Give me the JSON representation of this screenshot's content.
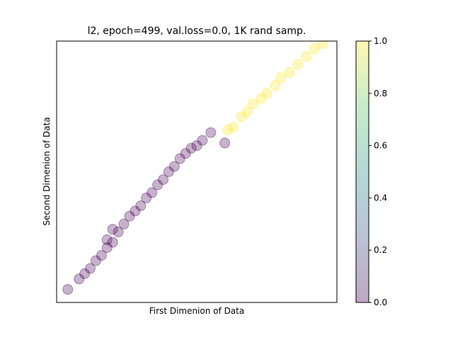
{
  "chart_data": {
    "type": "scatter",
    "title": "l2, epoch=499, val.loss=0.0, 1K rand samp.",
    "xlabel": "First Dimenion of Data",
    "ylabel": "Second Dimenion of Data",
    "xlim": [
      0,
      1
    ],
    "ylim": [
      0,
      1
    ],
    "x_ticks_visible": false,
    "y_ticks_visible": false,
    "grid": false,
    "marker_alpha": 0.3,
    "colormap": "viridis",
    "colorbar": {
      "range": [
        0.0,
        1.0
      ],
      "tick_labels": [
        "0.0",
        "0.2",
        "0.4",
        "0.6",
        "0.8",
        "1.0"
      ]
    },
    "clusters": [
      {
        "class_value": 0,
        "color": "#440154",
        "points": [
          [
            0.04,
            0.05
          ],
          [
            0.08,
            0.09
          ],
          [
            0.1,
            0.11
          ],
          [
            0.12,
            0.13
          ],
          [
            0.14,
            0.16
          ],
          [
            0.16,
            0.18
          ],
          [
            0.18,
            0.21
          ],
          [
            0.2,
            0.23
          ],
          [
            0.18,
            0.24
          ],
          [
            0.22,
            0.27
          ],
          [
            0.2,
            0.28
          ],
          [
            0.24,
            0.3
          ],
          [
            0.26,
            0.33
          ],
          [
            0.28,
            0.35
          ],
          [
            0.3,
            0.37
          ],
          [
            0.32,
            0.4
          ],
          [
            0.34,
            0.42
          ],
          [
            0.36,
            0.45
          ],
          [
            0.38,
            0.47
          ],
          [
            0.4,
            0.5
          ],
          [
            0.42,
            0.52
          ],
          [
            0.44,
            0.55
          ],
          [
            0.46,
            0.57
          ],
          [
            0.48,
            0.59
          ],
          [
            0.5,
            0.6
          ],
          [
            0.52,
            0.62
          ],
          [
            0.55,
            0.65
          ],
          [
            0.6,
            0.61
          ]
        ]
      },
      {
        "class_value": 1,
        "color": "#fde725",
        "points": [
          [
            0.61,
            0.66
          ],
          [
            0.63,
            0.67
          ],
          [
            0.66,
            0.71
          ],
          [
            0.68,
            0.73
          ],
          [
            0.7,
            0.76
          ],
          [
            0.73,
            0.78
          ],
          [
            0.75,
            0.8
          ],
          [
            0.78,
            0.83
          ],
          [
            0.8,
            0.86
          ],
          [
            0.83,
            0.88
          ],
          [
            0.86,
            0.91
          ],
          [
            0.89,
            0.94
          ],
          [
            0.92,
            0.97
          ],
          [
            0.95,
            0.99
          ]
        ]
      }
    ]
  }
}
